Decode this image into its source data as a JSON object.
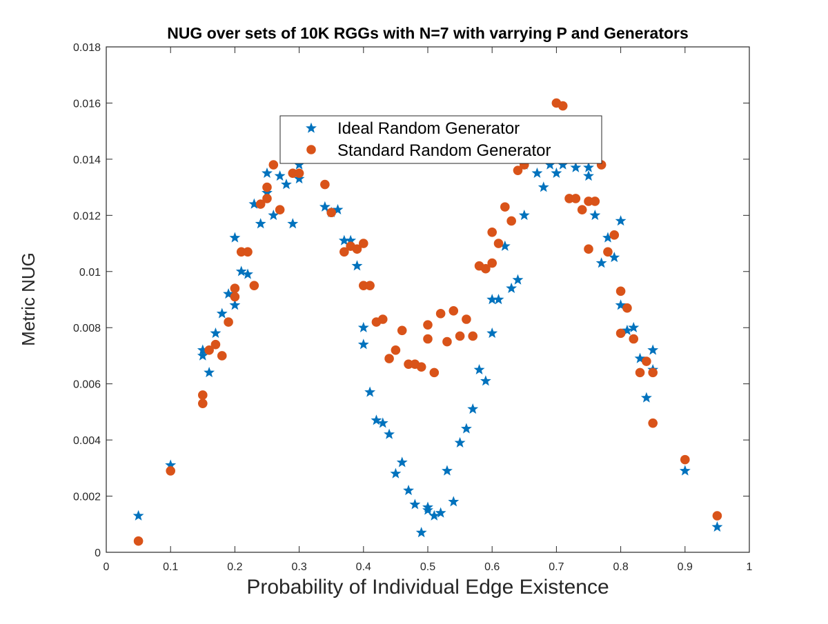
{
  "chart_data": {
    "type": "scatter",
    "title": "NUG over sets of 10K RGGs with N=7 with varrying P and Generators",
    "xlabel": "Probability of Individual Edge Existence",
    "ylabel": "Metric NUG",
    "xlim": [
      0,
      1
    ],
    "ylim": [
      0,
      0.018
    ],
    "xticks": [
      0,
      0.1,
      0.2,
      0.3,
      0.4,
      0.5,
      0.6,
      0.7,
      0.8,
      0.9,
      1
    ],
    "xtick_labels": [
      "0",
      "0.1",
      "0.2",
      "0.3",
      "0.4",
      "0.5",
      "0.6",
      "0.7",
      "0.8",
      "0.9",
      "1"
    ],
    "yticks": [
      0,
      0.002,
      0.004,
      0.006,
      0.008,
      0.01,
      0.012,
      0.014,
      0.016,
      0.018
    ],
    "ytick_labels": [
      "0",
      "0.002",
      "0.004",
      "0.006",
      "0.008",
      "0.01",
      "0.012",
      "0.014",
      "0.016",
      "0.018"
    ],
    "grid": false,
    "legend_position": "top-center",
    "series": [
      {
        "name": "Ideal Random Generator",
        "marker": "star",
        "color": "#0072BD",
        "points": [
          [
            0.05,
            0.0013
          ],
          [
            0.1,
            0.0031
          ],
          [
            0.15,
            0.0072
          ],
          [
            0.15,
            0.007
          ],
          [
            0.16,
            0.0064
          ],
          [
            0.17,
            0.0078
          ],
          [
            0.18,
            0.0085
          ],
          [
            0.19,
            0.0092
          ],
          [
            0.2,
            0.0112
          ],
          [
            0.2,
            0.0088
          ],
          [
            0.21,
            0.01
          ],
          [
            0.22,
            0.0099
          ],
          [
            0.23,
            0.0124
          ],
          [
            0.24,
            0.0117
          ],
          [
            0.25,
            0.0135
          ],
          [
            0.25,
            0.0128
          ],
          [
            0.26,
            0.012
          ],
          [
            0.27,
            0.0134
          ],
          [
            0.28,
            0.0131
          ],
          [
            0.29,
            0.0117
          ],
          [
            0.3,
            0.0138
          ],
          [
            0.3,
            0.0133
          ],
          [
            0.34,
            0.0123
          ],
          [
            0.35,
            0.0121
          ],
          [
            0.36,
            0.0122
          ],
          [
            0.37,
            0.0111
          ],
          [
            0.38,
            0.0111
          ],
          [
            0.39,
            0.0102
          ],
          [
            0.4,
            0.008
          ],
          [
            0.4,
            0.0074
          ],
          [
            0.41,
            0.0057
          ],
          [
            0.42,
            0.0047
          ],
          [
            0.43,
            0.0046
          ],
          [
            0.44,
            0.0042
          ],
          [
            0.45,
            0.0028
          ],
          [
            0.46,
            0.0032
          ],
          [
            0.47,
            0.0022
          ],
          [
            0.48,
            0.0017
          ],
          [
            0.49,
            0.0007
          ],
          [
            0.5,
            0.0016
          ],
          [
            0.5,
            0.0015
          ],
          [
            0.51,
            0.0013
          ],
          [
            0.52,
            0.0014
          ],
          [
            0.53,
            0.0029
          ],
          [
            0.54,
            0.0018
          ],
          [
            0.55,
            0.0039
          ],
          [
            0.56,
            0.0044
          ],
          [
            0.57,
            0.0051
          ],
          [
            0.58,
            0.0065
          ],
          [
            0.59,
            0.0061
          ],
          [
            0.6,
            0.009
          ],
          [
            0.6,
            0.0078
          ],
          [
            0.61,
            0.009
          ],
          [
            0.62,
            0.0109
          ],
          [
            0.63,
            0.0094
          ],
          [
            0.64,
            0.0097
          ],
          [
            0.65,
            0.012
          ],
          [
            0.65,
            0.0138
          ],
          [
            0.67,
            0.0135
          ],
          [
            0.68,
            0.013
          ],
          [
            0.69,
            0.0138
          ],
          [
            0.7,
            0.0135
          ],
          [
            0.71,
            0.0138
          ],
          [
            0.73,
            0.0137
          ],
          [
            0.75,
            0.0137
          ],
          [
            0.75,
            0.0134
          ],
          [
            0.76,
            0.012
          ],
          [
            0.77,
            0.0103
          ],
          [
            0.78,
            0.0112
          ],
          [
            0.79,
            0.0105
          ],
          [
            0.8,
            0.0118
          ],
          [
            0.8,
            0.0088
          ],
          [
            0.81,
            0.0079
          ],
          [
            0.82,
            0.008
          ],
          [
            0.83,
            0.0069
          ],
          [
            0.84,
            0.0055
          ],
          [
            0.85,
            0.0072
          ],
          [
            0.85,
            0.0065
          ],
          [
            0.9,
            0.0029
          ],
          [
            0.95,
            0.0009
          ]
        ]
      },
      {
        "name": "Standard Random Generator",
        "marker": "circle",
        "color": "#D95319",
        "points": [
          [
            0.05,
            0.0004
          ],
          [
            0.1,
            0.0029
          ],
          [
            0.15,
            0.0056
          ],
          [
            0.15,
            0.0053
          ],
          [
            0.16,
            0.0072
          ],
          [
            0.17,
            0.0074
          ],
          [
            0.18,
            0.007
          ],
          [
            0.19,
            0.0082
          ],
          [
            0.2,
            0.0094
          ],
          [
            0.2,
            0.0091
          ],
          [
            0.21,
            0.0107
          ],
          [
            0.22,
            0.0107
          ],
          [
            0.23,
            0.0095
          ],
          [
            0.24,
            0.0124
          ],
          [
            0.25,
            0.013
          ],
          [
            0.25,
            0.0126
          ],
          [
            0.26,
            0.0138
          ],
          [
            0.27,
            0.0122
          ],
          [
            0.29,
            0.0135
          ],
          [
            0.3,
            0.0135
          ],
          [
            0.34,
            0.0131
          ],
          [
            0.35,
            0.0121
          ],
          [
            0.37,
            0.0107
          ],
          [
            0.38,
            0.0109
          ],
          [
            0.39,
            0.0108
          ],
          [
            0.4,
            0.011
          ],
          [
            0.4,
            0.0095
          ],
          [
            0.41,
            0.0095
          ],
          [
            0.42,
            0.0082
          ],
          [
            0.43,
            0.0083
          ],
          [
            0.44,
            0.0069
          ],
          [
            0.45,
            0.0072
          ],
          [
            0.46,
            0.0079
          ],
          [
            0.47,
            0.0067
          ],
          [
            0.48,
            0.0067
          ],
          [
            0.49,
            0.0066
          ],
          [
            0.5,
            0.0081
          ],
          [
            0.5,
            0.0076
          ],
          [
            0.51,
            0.0064
          ],
          [
            0.52,
            0.0085
          ],
          [
            0.53,
            0.0075
          ],
          [
            0.54,
            0.0086
          ],
          [
            0.55,
            0.0077
          ],
          [
            0.56,
            0.0083
          ],
          [
            0.57,
            0.0077
          ],
          [
            0.58,
            0.0102
          ],
          [
            0.59,
            0.0101
          ],
          [
            0.6,
            0.0114
          ],
          [
            0.6,
            0.0103
          ],
          [
            0.61,
            0.011
          ],
          [
            0.62,
            0.0123
          ],
          [
            0.63,
            0.0118
          ],
          [
            0.64,
            0.0136
          ],
          [
            0.65,
            0.0138
          ],
          [
            0.7,
            0.016
          ],
          [
            0.71,
            0.0159
          ],
          [
            0.72,
            0.0126
          ],
          [
            0.73,
            0.0126
          ],
          [
            0.74,
            0.0122
          ],
          [
            0.75,
            0.0125
          ],
          [
            0.75,
            0.0108
          ],
          [
            0.76,
            0.0125
          ],
          [
            0.77,
            0.0138
          ],
          [
            0.78,
            0.0107
          ],
          [
            0.79,
            0.0113
          ],
          [
            0.8,
            0.0093
          ],
          [
            0.8,
            0.0078
          ],
          [
            0.81,
            0.0087
          ],
          [
            0.82,
            0.0076
          ],
          [
            0.83,
            0.0064
          ],
          [
            0.84,
            0.0068
          ],
          [
            0.85,
            0.0064
          ],
          [
            0.85,
            0.0046
          ],
          [
            0.9,
            0.0033
          ],
          [
            0.95,
            0.0013
          ]
        ]
      }
    ]
  }
}
